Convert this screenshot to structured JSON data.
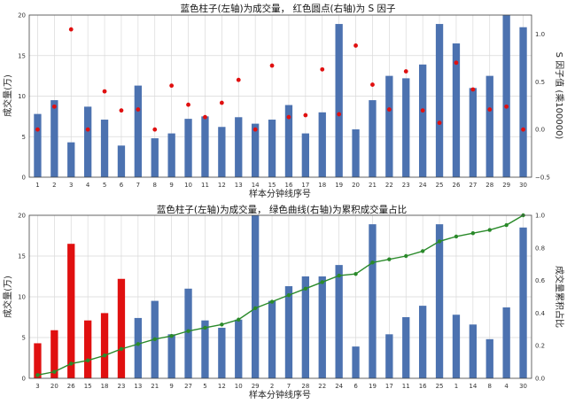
{
  "chart_data": [
    {
      "type": "bar+scatter",
      "title": "蓝色柱子(左轴)为成交量， 红色圆点(右轴)为 S 因子",
      "xlabel": "样本分钟线序号",
      "ylabel": "成交量(万)",
      "y2label": "S 因子值 (乘100000)",
      "ylim": [
        0,
        20
      ],
      "y2lim": [
        -0.5,
        1.2
      ],
      "yticks": [
        "0",
        "5",
        "10",
        "15",
        "20"
      ],
      "y2ticks": [
        "−0.5",
        "0.0",
        "0.5",
        "1.0"
      ],
      "categories": [
        "1",
        "2",
        "3",
        "4",
        "5",
        "6",
        "7",
        "8",
        "9",
        "10",
        "11",
        "12",
        "13",
        "14",
        "15",
        "16",
        "17",
        "18",
        "19",
        "20",
        "21",
        "22",
        "23",
        "24",
        "25",
        "26",
        "27",
        "28",
        "29",
        "30"
      ],
      "bar_color": "#4c72b0",
      "dot_color": "#e01010",
      "series": [
        {
          "values": [
            7.8,
            9.5,
            4.3,
            8.7,
            7.1,
            3.9,
            11.3,
            4.8,
            5.4,
            7.2,
            7.5,
            6.2,
            7.4,
            6.6,
            7.1,
            8.9,
            5.4,
            8.0,
            18.9,
            5.9,
            9.5,
            12.5,
            12.2,
            13.9,
            18.9,
            16.5,
            11.0,
            12.5,
            20.0,
            18.5
          ]
        },
        {
          "values": [
            0.0,
            0.24,
            1.05,
            0.0,
            0.4,
            0.2,
            0.21,
            0.0,
            0.46,
            0.26,
            0.13,
            0.28,
            0.52,
            0.0,
            0.67,
            0.13,
            0.15,
            0.63,
            0.16,
            0.88,
            0.47,
            0.21,
            0.61,
            0.2,
            0.07,
            0.7,
            0.42,
            0.21,
            0.24,
            0.0
          ]
        }
      ]
    },
    {
      "type": "bar+line",
      "title": "蓝色柱子(左轴)为成交量， 绿色曲线(右轴)为累积成交量占比",
      "xlabel": "样本分钟线序号",
      "ylabel": "成交量(万)",
      "y2label": "成交量累积占比",
      "ylim": [
        0,
        20
      ],
      "y2lim": [
        0,
        1.0
      ],
      "yticks": [
        "0",
        "5",
        "10",
        "15",
        "20"
      ],
      "y2ticks": [
        "0.0",
        "0.2",
        "0.4",
        "0.6",
        "0.8",
        "1.0"
      ],
      "categories": [
        "3",
        "20",
        "26",
        "15",
        "18",
        "23",
        "13",
        "21",
        "9",
        "27",
        "5",
        "12",
        "10",
        "29",
        "2",
        "7",
        "28",
        "22",
        "24",
        "6",
        "19",
        "17",
        "11",
        "16",
        "25",
        "1",
        "14",
        "8",
        "4",
        "30"
      ],
      "bar_color": "#4c72b0",
      "highlight_color": "#e01010",
      "highlight_count": 6,
      "line_color": "#2a8a2a",
      "series": [
        {
          "values": [
            4.3,
            5.9,
            16.5,
            7.1,
            8.0,
            12.2,
            7.4,
            9.5,
            5.4,
            11.0,
            7.1,
            6.2,
            7.2,
            20.0,
            9.5,
            11.3,
            12.5,
            12.5,
            13.9,
            3.9,
            18.9,
            5.4,
            7.5,
            8.9,
            18.9,
            7.8,
            6.6,
            4.8,
            8.7,
            18.5
          ]
        },
        {
          "values": [
            0.02,
            0.04,
            0.09,
            0.11,
            0.14,
            0.18,
            0.21,
            0.24,
            0.26,
            0.29,
            0.31,
            0.33,
            0.36,
            0.43,
            0.47,
            0.51,
            0.55,
            0.59,
            0.63,
            0.64,
            0.71,
            0.73,
            0.75,
            0.78,
            0.84,
            0.87,
            0.89,
            0.91,
            0.94,
            1.0
          ]
        }
      ]
    }
  ]
}
